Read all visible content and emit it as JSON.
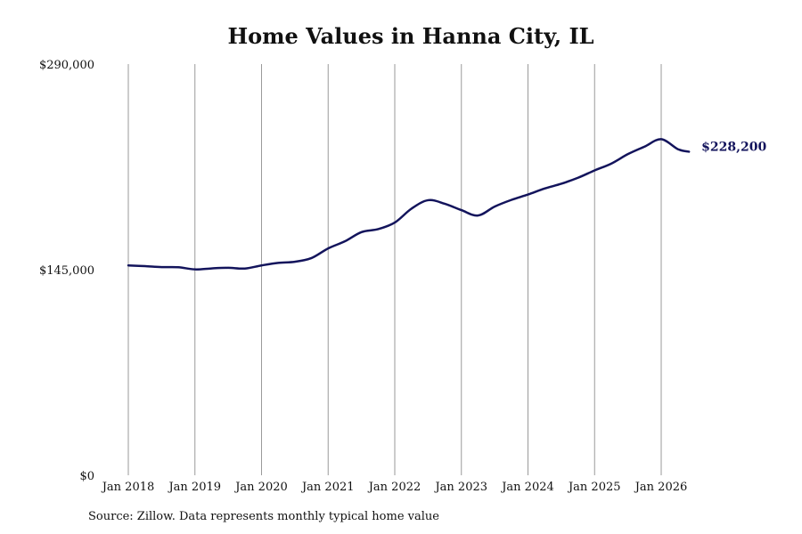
{
  "chart_data": {
    "type": "line",
    "title": "Home Values in Hanna City, IL",
    "xlabel": "",
    "ylabel": "",
    "ylim": [
      0,
      290000
    ],
    "y_ticks": [
      {
        "value": 0,
        "label": "$0"
      },
      {
        "value": 145000,
        "label": "$145,000"
      },
      {
        "value": 290000,
        "label": "$290,000"
      }
    ],
    "x_ticks": [
      {
        "year": 2018,
        "label": "Jan 2018"
      },
      {
        "year": 2019,
        "label": "Jan 2019"
      },
      {
        "year": 2020,
        "label": "Jan 2020"
      },
      {
        "year": 2021,
        "label": "Jan 2021"
      },
      {
        "year": 2022,
        "label": "Jan 2022"
      },
      {
        "year": 2023,
        "label": "Jan 2023"
      },
      {
        "year": 2024,
        "label": "Jan 2024"
      },
      {
        "year": 2025,
        "label": "Jan 2025"
      },
      {
        "year": 2026,
        "label": "Jan 2026"
      }
    ],
    "grid": "vertical",
    "line_color": "#13145c",
    "series": [
      {
        "points": [
          [
            "2018-01",
            148000
          ],
          [
            "2018-04",
            147500
          ],
          [
            "2018-07",
            146800
          ],
          [
            "2018-10",
            146700
          ],
          [
            "2019-01",
            145200
          ],
          [
            "2019-04",
            145900
          ],
          [
            "2019-07",
            146300
          ],
          [
            "2019-10",
            145800
          ],
          [
            "2020-01",
            148000
          ],
          [
            "2020-04",
            149800
          ],
          [
            "2020-07",
            150600
          ],
          [
            "2020-10",
            153200
          ],
          [
            "2021-01",
            160000
          ],
          [
            "2021-04",
            165000
          ],
          [
            "2021-07",
            171500
          ],
          [
            "2021-10",
            173600
          ],
          [
            "2022-01",
            178200
          ],
          [
            "2022-04",
            188000
          ],
          [
            "2022-07",
            194000
          ],
          [
            "2022-10",
            191500
          ],
          [
            "2023-01",
            187000
          ],
          [
            "2023-04",
            183200
          ],
          [
            "2023-07",
            189500
          ],
          [
            "2023-10",
            194200
          ],
          [
            "2024-01",
            198000
          ],
          [
            "2024-04",
            202200
          ],
          [
            "2024-07",
            205600
          ],
          [
            "2024-10",
            209800
          ],
          [
            "2025-01",
            215000
          ],
          [
            "2025-04",
            219800
          ],
          [
            "2025-07",
            226500
          ],
          [
            "2025-10",
            231800
          ],
          [
            "2026-01",
            237000
          ],
          [
            "2026-04",
            230000
          ],
          [
            "2026-06",
            228200
          ]
        ]
      }
    ],
    "end_label": "$228,200"
  },
  "footer": {
    "source": "Source: Zillow. Data represents monthly typical home value"
  }
}
